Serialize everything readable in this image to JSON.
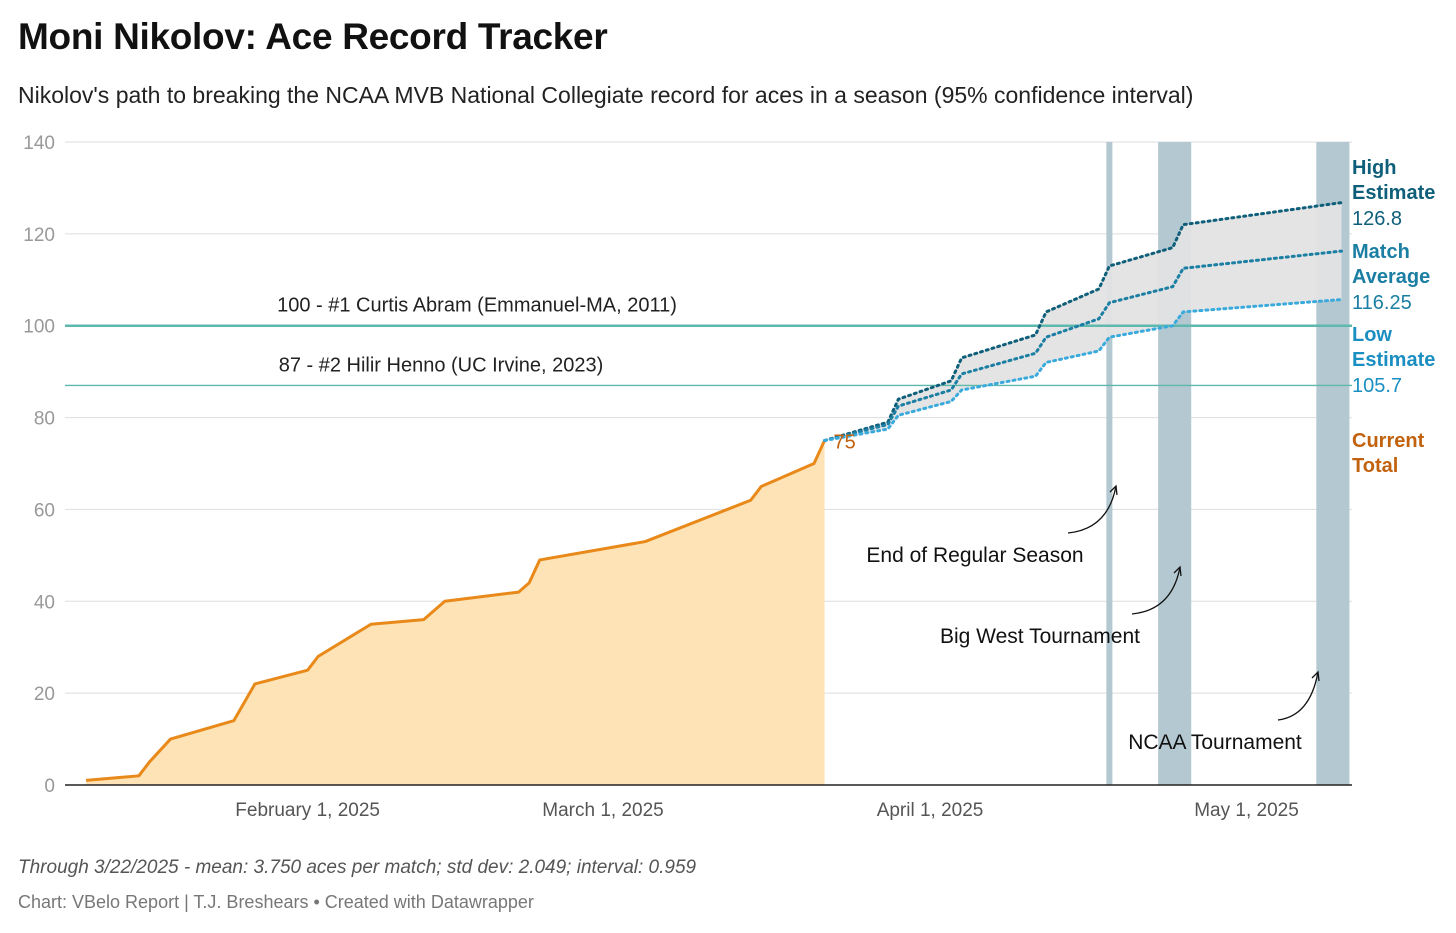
{
  "header": {
    "title": "Moni Nikolov: Ace Record Tracker",
    "subtitle": "Nikolov's path to breaking the NCAA MVB National Collegiate record for aces in a season (95% confidence interval)"
  },
  "footer": {
    "notes": "Through 3/22/2025 - mean: 3.750 aces per match; std dev: 2.049; interval: 0.959",
    "byline": "Chart: VBelo Report | T.J. Breshears • Created with Datawrapper"
  },
  "chart_data": {
    "type": "line",
    "title": "Moni Nikolov: Ace Record Tracker",
    "xlabel": "",
    "ylabel": "",
    "ylim": [
      0,
      140
    ],
    "yticks": [
      "0",
      "20",
      "40",
      "60",
      "80",
      "100",
      "120",
      "140"
    ],
    "xlim": [
      "2025-01-09",
      "2025-05-11"
    ],
    "xticks": [
      {
        "date": "2025-02-01",
        "label": "February 1, 2025"
      },
      {
        "date": "2025-03-01",
        "label": "March 1, 2025"
      },
      {
        "date": "2025-04-01",
        "label": "April 1, 2025"
      },
      {
        "date": "2025-05-01",
        "label": "May 1, 2025"
      }
    ],
    "grid": true,
    "colors": {
      "actual": "#e8891a",
      "actual_fill": "#fde3b5",
      "high": "#0f5f7a",
      "average": "#1b7ea3",
      "low": "#3aaadc",
      "band": "#e3e3e3",
      "reference": "#5fb8ad",
      "period": "#b3c8d1",
      "current_label": "#c2620f"
    },
    "actual": [
      [
        "2025-01-11",
        1
      ],
      [
        "2025-01-16",
        2
      ],
      [
        "2025-01-17",
        5
      ],
      [
        "2025-01-19",
        10
      ],
      [
        "2025-01-25",
        14
      ],
      [
        "2025-01-27",
        22
      ],
      [
        "2025-02-01",
        25
      ],
      [
        "2025-02-02",
        28
      ],
      [
        "2025-02-07",
        35
      ],
      [
        "2025-02-12",
        36
      ],
      [
        "2025-02-14",
        40
      ],
      [
        "2025-02-21",
        42
      ],
      [
        "2025-02-22",
        44
      ],
      [
        "2025-02-23",
        49
      ],
      [
        "2025-03-05",
        53
      ],
      [
        "2025-03-15",
        62
      ],
      [
        "2025-03-16",
        65
      ],
      [
        "2025-03-21",
        70
      ],
      [
        "2025-03-22",
        75
      ]
    ],
    "series": [
      {
        "name": "High Estimate",
        "final_label": "126.8",
        "values": [
          [
            "2025-03-22",
            75
          ],
          [
            "2025-03-28",
            79
          ],
          [
            "2025-03-29",
            84
          ],
          [
            "2025-04-03",
            88
          ],
          [
            "2025-04-04",
            93
          ],
          [
            "2025-04-11",
            98
          ],
          [
            "2025-04-12",
            103
          ],
          [
            "2025-04-17",
            108
          ],
          [
            "2025-04-18",
            113
          ],
          [
            "2025-04-24",
            117
          ],
          [
            "2025-04-25",
            122
          ],
          [
            "2025-05-10",
            126.8
          ]
        ]
      },
      {
        "name": "Match Average",
        "final_label": "116.25",
        "values": [
          [
            "2025-03-22",
            75
          ],
          [
            "2025-03-28",
            78.5
          ],
          [
            "2025-03-29",
            82.5
          ],
          [
            "2025-04-03",
            86
          ],
          [
            "2025-04-04",
            89.5
          ],
          [
            "2025-04-11",
            94
          ],
          [
            "2025-04-12",
            97.5
          ],
          [
            "2025-04-17",
            101.5
          ],
          [
            "2025-04-18",
            105
          ],
          [
            "2025-04-24",
            108.5
          ],
          [
            "2025-04-25",
            112.5
          ],
          [
            "2025-05-10",
            116.25
          ]
        ]
      },
      {
        "name": "Low Estimate",
        "final_label": "105.7",
        "values": [
          [
            "2025-03-22",
            75
          ],
          [
            "2025-03-28",
            77.5
          ],
          [
            "2025-03-29",
            80.5
          ],
          [
            "2025-04-03",
            83.5
          ],
          [
            "2025-04-04",
            86
          ],
          [
            "2025-04-11",
            89
          ],
          [
            "2025-04-12",
            92
          ],
          [
            "2025-04-17",
            94.5
          ],
          [
            "2025-04-18",
            97.5
          ],
          [
            "2025-04-24",
            100
          ],
          [
            "2025-04-25",
            103
          ],
          [
            "2025-05-10",
            105.7
          ]
        ]
      }
    ],
    "current_total": {
      "label": "Current Total",
      "value": "75"
    },
    "reference_lines": [
      {
        "value": 100,
        "label": "100 - #1 Curtis Abram (Emmanuel-MA, 2011)"
      },
      {
        "value": 87,
        "label": "87 - #2 Hilir Henno (UC Irvine, 2023)"
      }
    ],
    "periods": [
      {
        "start": "2025-04-18",
        "end": "2025-04-18",
        "label": "End of Regular Season"
      },
      {
        "start": "2025-04-23",
        "end": "2025-04-25",
        "label": "Big West Tournament"
      },
      {
        "start": "2025-05-08",
        "end": "2025-05-10",
        "label": "NCAA Tournament"
      }
    ]
  }
}
